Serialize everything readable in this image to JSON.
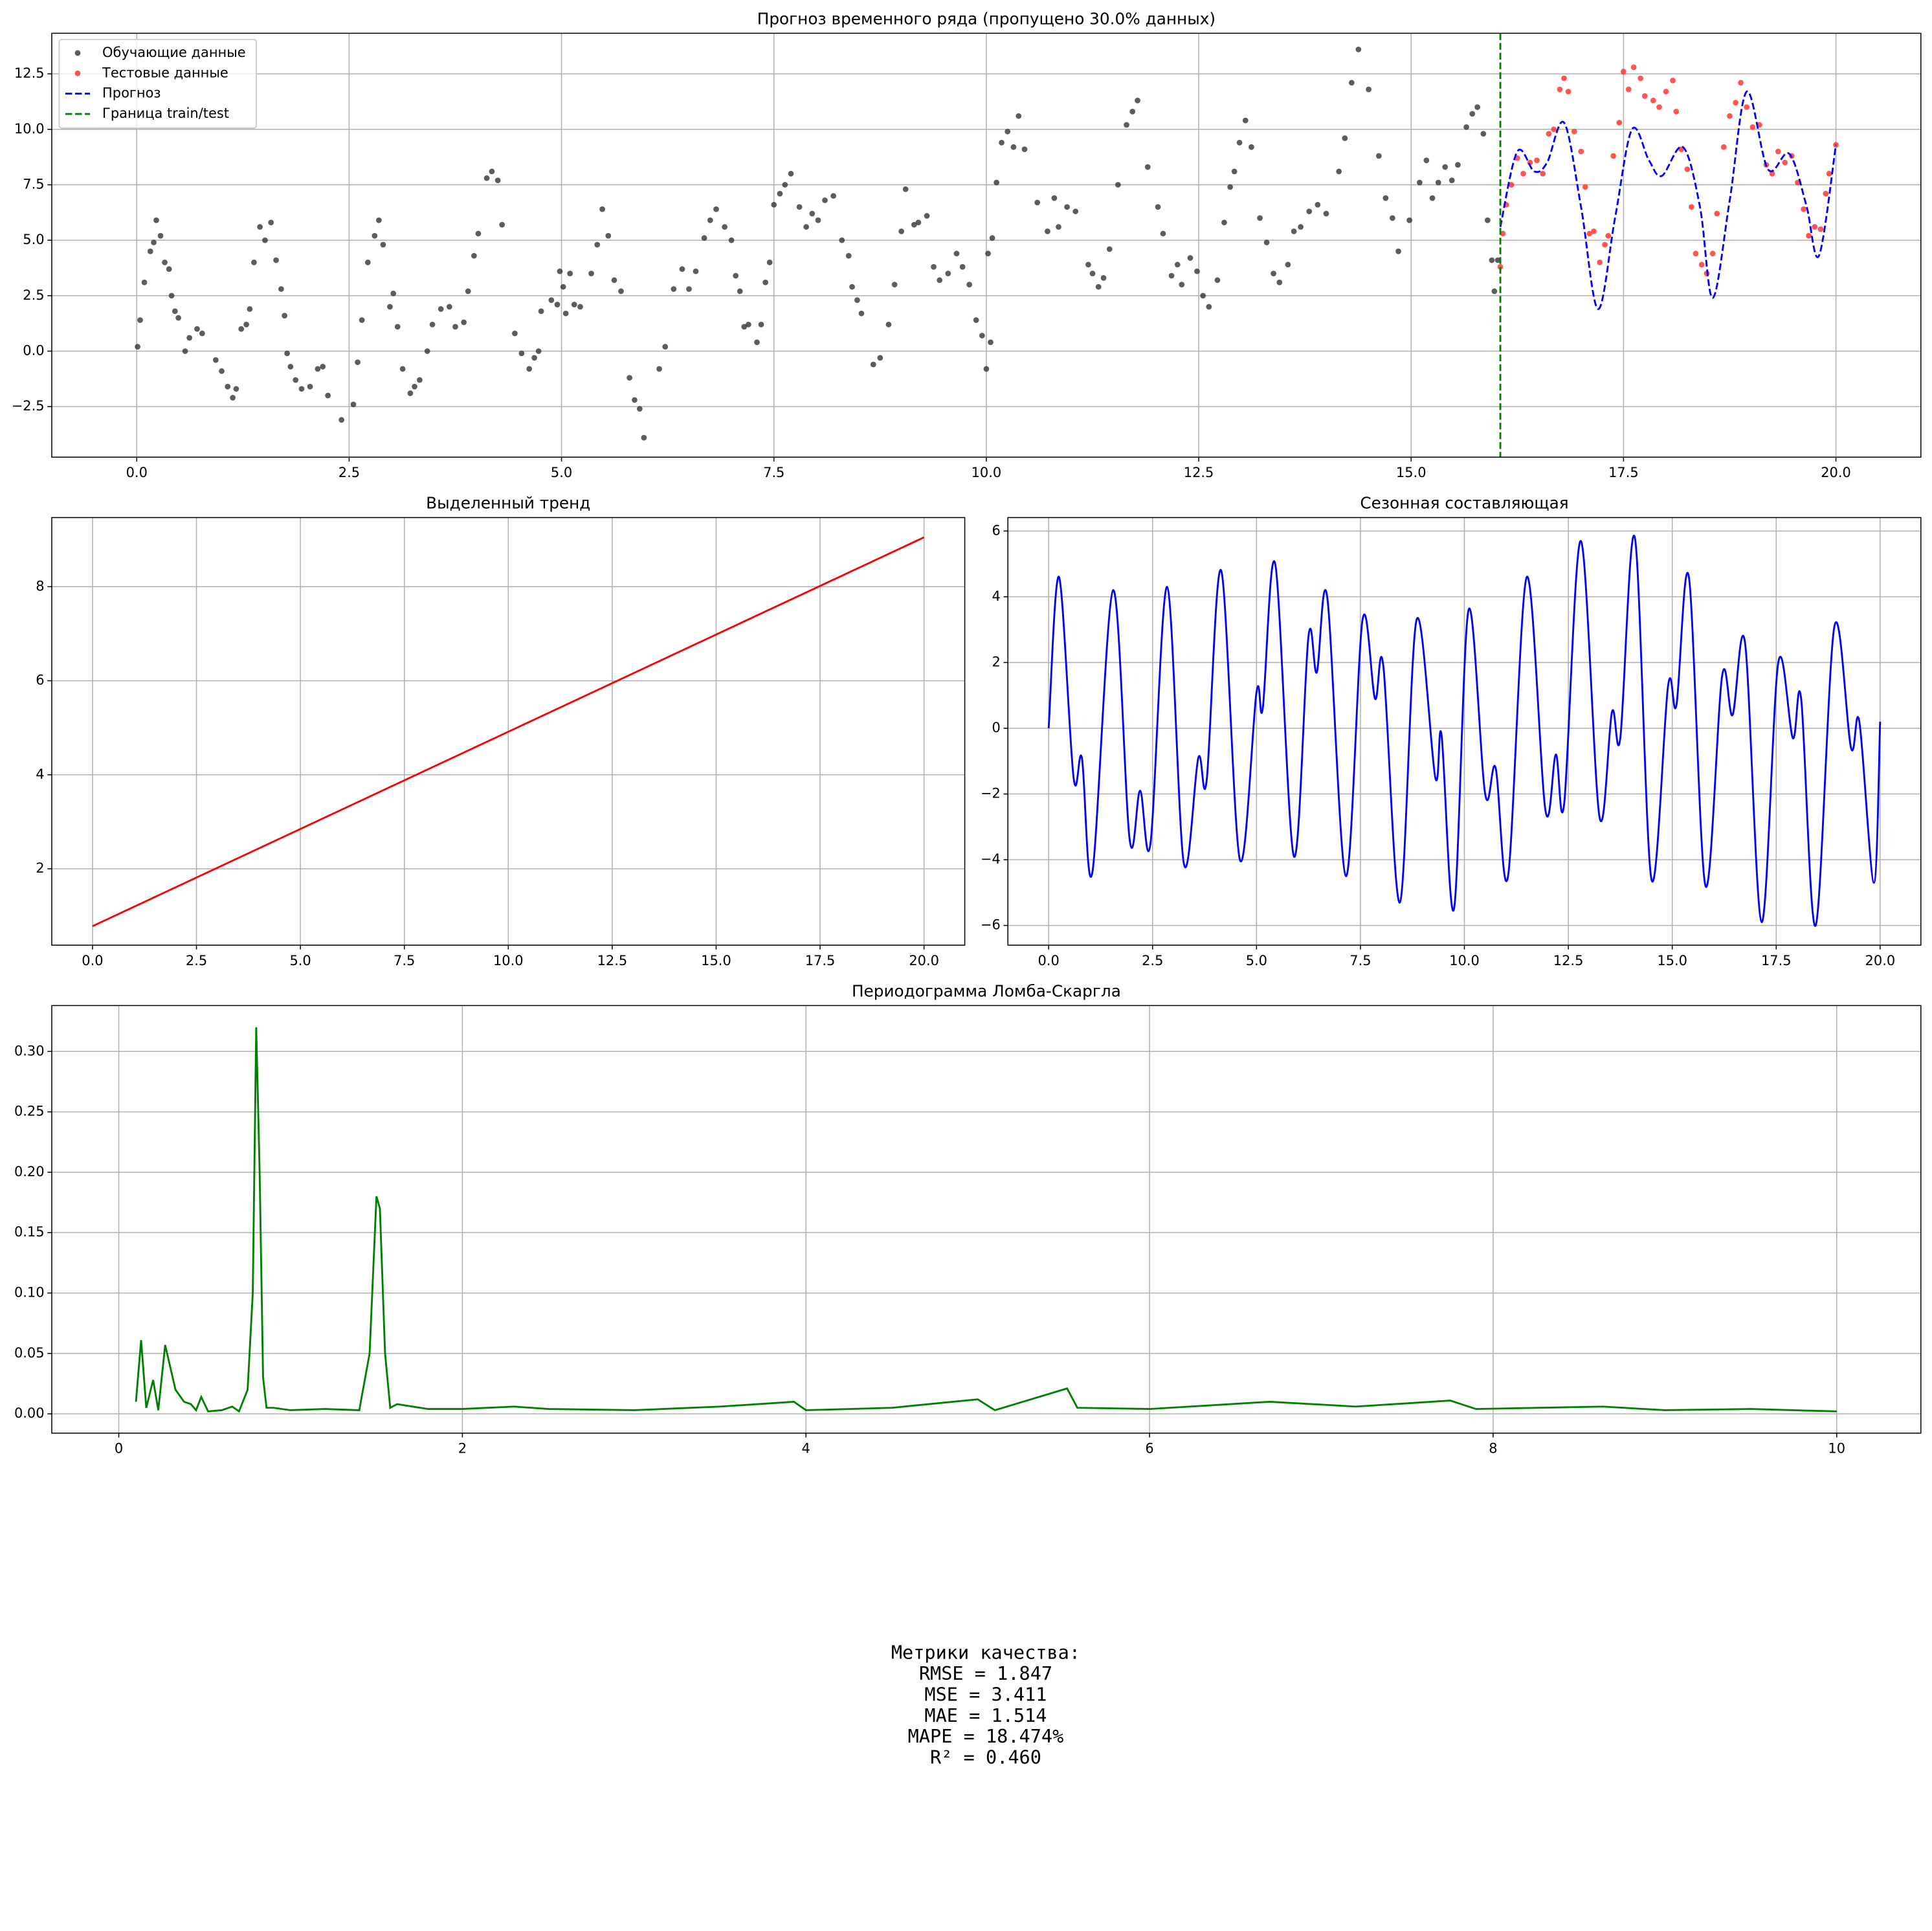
{
  "chart_data": [
    {
      "type": "scatter",
      "title": "Прогноз временного ряда (пропущено 30.0% данных)",
      "xlim": [
        -1,
        21
      ],
      "ylim": [
        -4.78,
        14.33
      ],
      "xticks": [
        {
          "value": 0,
          "label": "0.0"
        },
        2.5,
        {
          "value": 5,
          "label": "5.0"
        },
        7.5,
        {
          "value": 10,
          "label": "10.0"
        },
        12.5,
        {
          "value": 15,
          "label": "15.0"
        },
        17.5,
        {
          "value": 20,
          "label": "20.0"
        }
      ],
      "yticks": [
        {
          "value": -2.5,
          "label": "−2.5"
        },
        {
          "value": 0,
          "label": "0.0"
        },
        2.5,
        {
          "value": 5,
          "label": "5.0"
        },
        7.5,
        {
          "value": 10,
          "label": "10.0"
        },
        12.5
      ],
      "grid": true,
      "legend": "upper left",
      "series": [
        {
          "name": "Обучающие данные",
          "color": "#333333",
          "type": "scatter",
          "x": [
            0.01,
            0.04,
            0.09,
            0.16,
            0.2,
            0.23,
            0.28,
            0.33,
            0.38,
            0.41,
            0.45,
            0.49,
            0.57,
            0.62,
            0.71,
            0.77,
            0.93,
            1.0,
            1.07,
            1.13,
            1.17,
            1.23,
            1.29,
            1.33,
            1.38,
            1.45,
            1.51,
            1.58,
            1.64,
            1.7,
            1.74,
            1.77,
            1.81,
            1.87,
            1.94,
            2.04,
            2.13,
            2.19,
            2.25,
            2.41,
            2.55,
            2.6,
            2.65,
            2.72,
            2.8,
            2.85,
            2.9,
            2.98,
            3.02,
            3.07,
            3.13,
            3.22,
            3.27,
            3.33,
            3.42,
            3.48,
            3.58,
            3.68,
            3.75,
            3.85,
            3.9,
            3.97,
            4.02,
            4.12,
            4.18,
            4.25,
            4.3,
            4.45,
            4.53,
            4.62,
            4.68,
            4.73,
            4.76,
            4.88,
            4.95,
            4.98,
            5.02,
            5.05,
            5.1,
            5.15,
            5.22,
            5.35,
            5.42,
            5.48,
            5.55,
            5.62,
            5.7,
            5.8,
            5.86,
            5.92,
            5.97,
            6.15,
            6.22,
            6.32,
            6.42,
            6.5,
            6.58,
            6.68,
            6.75,
            6.82,
            6.92,
            7.0,
            7.05,
            7.1,
            7.15,
            7.2,
            7.3,
            7.35,
            7.4,
            7.45,
            7.5,
            7.57,
            7.63,
            7.7,
            7.8,
            7.88,
            7.95,
            8.02,
            8.1,
            8.2,
            8.3,
            8.38,
            8.42,
            8.48,
            8.53,
            8.67,
            8.75,
            8.85,
            8.92,
            9.0,
            9.05,
            9.15,
            9.2,
            9.3,
            9.38,
            9.45,
            9.55,
            9.65,
            9.72,
            9.8,
            9.88,
            9.95,
            10.0,
            10.05,
            10.02,
            10.07,
            10.12,
            10.18,
            10.25,
            10.32,
            10.38,
            10.45,
            10.6,
            10.72,
            10.8,
            10.85,
            10.95,
            11.05,
            11.2,
            11.25,
            11.32,
            11.38,
            11.45,
            11.55,
            11.65,
            11.72,
            11.78,
            11.9,
            12.02,
            12.08,
            12.18,
            12.25,
            12.3,
            12.4,
            12.48,
            12.55,
            12.62,
            12.72,
            12.8,
            12.87,
            12.92,
            12.98,
            13.05,
            13.12,
            13.22,
            13.3,
            13.38,
            13.45,
            13.55,
            13.62,
            13.7,
            13.8,
            13.9,
            14.0,
            14.15,
            14.22,
            14.3,
            14.38,
            14.5,
            14.62,
            14.7,
            14.78,
            14.85,
            14.98,
            15.1,
            15.18,
            15.25,
            15.32,
            15.4,
            15.48,
            15.55,
            15.65,
            15.72,
            15.78,
            15.85,
            15.9,
            15.95,
            15.98,
            16.02
          ],
          "values": [
            0.2,
            1.4,
            3.1,
            4.5,
            4.9,
            5.9,
            5.2,
            4.0,
            3.7,
            2.5,
            1.8,
            1.5,
            0.0,
            0.6,
            1.0,
            0.8,
            -0.4,
            -0.9,
            -1.6,
            -2.1,
            -1.7,
            1.0,
            1.2,
            1.9,
            4.0,
            5.6,
            5.0,
            5.8,
            4.1,
            2.8,
            1.6,
            -0.1,
            -0.7,
            -1.3,
            -1.7,
            -1.6,
            -0.8,
            -0.7,
            -2.0,
            -3.1,
            -2.4,
            -0.5,
            1.4,
            4.0,
            5.2,
            5.9,
            4.8,
            2.0,
            2.6,
            1.1,
            -0.8,
            -1.9,
            -1.6,
            -1.3,
            0.0,
            1.2,
            1.9,
            2.0,
            1.1,
            1.3,
            2.7,
            4.3,
            5.3,
            7.8,
            8.1,
            7.7,
            5.7,
            0.8,
            -0.1,
            -0.8,
            -0.3,
            0.0,
            1.8,
            2.3,
            2.1,
            3.6,
            2.9,
            1.7,
            3.5,
            2.1,
            2.0,
            3.5,
            4.8,
            6.4,
            5.2,
            3.2,
            2.7,
            -1.2,
            -2.2,
            -2.6,
            -3.9,
            -0.8,
            0.2,
            2.8,
            3.7,
            2.8,
            3.6,
            5.1,
            5.9,
            6.4,
            5.6,
            5.0,
            3.4,
            2.7,
            1.1,
            1.2,
            0.4,
            1.2,
            3.1,
            4.0,
            6.6,
            7.1,
            7.5,
            8.0,
            6.5,
            5.6,
            6.2,
            5.9,
            6.8,
            7.0,
            5.0,
            4.3,
            2.9,
            2.3,
            1.7,
            -0.6,
            -0.3,
            1.2,
            3.0,
            5.4,
            7.3,
            5.7,
            5.8,
            6.1,
            3.8,
            3.2,
            3.5,
            4.4,
            3.8,
            3.0,
            1.4,
            0.7,
            -0.8,
            0.4,
            4.4,
            5.1,
            7.6,
            9.4,
            9.9,
            9.2,
            10.6,
            9.1,
            6.7,
            5.4,
            6.9,
            5.6,
            6.5,
            6.3,
            3.9,
            3.5,
            2.9,
            3.3,
            4.6,
            7.5,
            10.2,
            10.8,
            11.3,
            8.3,
            6.5,
            5.3,
            3.4,
            3.9,
            3.0,
            4.2,
            3.6,
            2.5,
            2.0,
            3.2,
            5.8,
            7.4,
            8.1,
            9.4,
            10.4,
            9.2,
            6.0,
            4.9,
            3.5,
            3.1,
            3.9,
            5.4,
            5.6,
            6.3,
            6.6,
            6.2,
            8.1,
            9.6,
            12.1,
            13.6,
            11.8,
            8.8,
            6.9,
            6.0,
            4.5,
            5.9,
            7.6,
            8.6,
            6.9,
            7.6,
            8.3,
            7.7,
            8.4,
            10.1,
            10.7,
            11.0,
            9.8,
            5.9,
            4.1,
            2.7,
            4.1
          ]
        },
        {
          "name": "Тестовые данные",
          "color": "#ff2a2a",
          "type": "scatter",
          "x": [
            16.05,
            16.08,
            16.12,
            16.18,
            16.25,
            16.32,
            16.4,
            16.48,
            16.55,
            16.62,
            16.68,
            16.75,
            16.8,
            16.85,
            16.92,
            17.0,
            17.05,
            17.1,
            17.15,
            17.22,
            17.28,
            17.32,
            17.38,
            17.45,
            17.5,
            17.56,
            17.62,
            17.7,
            17.75,
            17.85,
            17.92,
            18.0,
            18.08,
            18.12,
            18.18,
            18.25,
            18.3,
            18.35,
            18.42,
            18.48,
            18.55,
            18.6,
            18.68,
            18.75,
            18.82,
            18.88,
            18.95,
            19.02,
            19.1,
            19.18,
            19.25,
            19.32,
            19.4,
            19.48,
            19.55,
            19.62,
            19.68,
            19.75,
            19.82,
            19.88,
            19.92,
            20.0
          ],
          "values": [
            3.8,
            5.3,
            6.6,
            7.5,
            8.7,
            8.0,
            8.5,
            8.6,
            8.0,
            9.8,
            10.0,
            11.8,
            12.3,
            11.7,
            9.9,
            9.0,
            7.4,
            5.3,
            5.4,
            4.0,
            4.8,
            5.2,
            8.8,
            10.3,
            12.6,
            11.8,
            12.8,
            12.3,
            11.5,
            11.3,
            11.0,
            11.7,
            12.2,
            10.8,
            9.1,
            8.2,
            6.5,
            4.4,
            3.9,
            3.5,
            4.4,
            6.2,
            9.2,
            10.6,
            11.2,
            12.1,
            11.0,
            10.1,
            10.2,
            8.4,
            8.0,
            9.0,
            8.5,
            8.8,
            7.6,
            6.4,
            5.2,
            5.6,
            5.5,
            7.1,
            8.0,
            9.3
          ]
        },
        {
          "name": "Прогноз",
          "color": "#0000ff",
          "type": "line",
          "linestyle": "dashed",
          "smooth": true,
          "x": [
            16.05,
            16.25,
            16.45,
            16.6,
            16.8,
            17.0,
            17.2,
            17.4,
            17.6,
            17.8,
            17.95,
            18.2,
            18.4,
            18.55,
            18.75,
            18.95,
            19.2,
            19.45,
            19.65,
            19.8,
            20
          ],
          "values": [
            5.6,
            9.0,
            8.1,
            8.5,
            10.3,
            6.5,
            1.9,
            6.0,
            10.0,
            8.6,
            7.9,
            9.2,
            6.5,
            2.4,
            6.8,
            11.7,
            8.2,
            8.9,
            6.6,
            4.3,
            9.3
          ]
        },
        {
          "name": "Граница train/test",
          "color": "#008000",
          "type": "vline",
          "linestyle": "dashed",
          "x": 16.05
        }
      ]
    },
    {
      "type": "line",
      "title": "Выделенный тренд",
      "xlim": [
        -0.98,
        20.98
      ],
      "ylim": [
        0.376,
        9.47
      ],
      "xticks": [
        {
          "value": 0,
          "label": "0.0"
        },
        2.5,
        {
          "value": 5,
          "label": "5.0"
        },
        7.5,
        {
          "value": 10,
          "label": "10.0"
        },
        12.5,
        {
          "value": 15,
          "label": "15.0"
        },
        17.5,
        {
          "value": 20,
          "label": "20.0"
        }
      ],
      "yticks": [
        2,
        4,
        6,
        8
      ],
      "grid": true,
      "x": [
        0,
        20
      ],
      "series": [
        {
          "color": "#ff0000",
          "values": [
            0.78,
            9.05
          ]
        }
      ]
    },
    {
      "type": "line",
      "title": "Сезонная составляющая",
      "xlim": [
        -0.98,
        20.98
      ],
      "ylim": [
        -6.6,
        6.41
      ],
      "xticks": [
        {
          "value": 0,
          "label": "0.0"
        },
        2.5,
        {
          "value": 5,
          "label": "5.0"
        },
        7.5,
        {
          "value": 10,
          "label": "10.0"
        },
        12.5,
        {
          "value": 15,
          "label": "15.0"
        },
        17.5,
        {
          "value": 20,
          "label": "20.0"
        }
      ],
      "yticks": [
        {
          "value": -6,
          "label": "−6"
        },
        {
          "value": -4,
          "label": "−4"
        },
        {
          "value": -2,
          "label": "−2"
        },
        0,
        2,
        4,
        6
      ],
      "grid": true,
      "x": [
        0,
        0.25,
        0.6,
        0.8,
        1.05,
        1.55,
        1.95,
        2.2,
        2.45,
        2.85,
        3.25,
        3.6,
        3.8,
        4.15,
        4.6,
        5.0,
        5.15,
        5.45,
        5.9,
        6.25,
        6.45,
        6.7,
        7.15,
        7.55,
        7.85,
        8.05,
        8.45,
        8.85,
        9.3,
        9.45,
        9.75,
        10.1,
        10.5,
        10.75,
        11.05,
        11.5,
        11.95,
        12.2,
        12.4,
        12.8,
        13.25,
        13.55,
        13.75,
        14.1,
        14.5,
        14.9,
        15.1,
        15.4,
        15.8,
        16.2,
        16.45,
        16.75,
        17.15,
        17.55,
        17.9,
        18.1,
        18.45,
        18.9,
        19.3,
        19.5,
        19.85,
        20
      ],
      "series": [
        {
          "color": "#0000ff",
          "smooth": true,
          "values": [
            0,
            4.6,
            -1.5,
            -0.9,
            -4.4,
            4.2,
            -3.4,
            -1.9,
            -3.5,
            4.3,
            -4.1,
            -0.9,
            -1.6,
            4.8,
            -4.0,
            1.1,
            0.6,
            5.0,
            -3.9,
            2.8,
            1.7,
            4.0,
            -4.5,
            3.3,
            0.9,
            1.9,
            -5.3,
            3.3,
            -1.5,
            -0.2,
            -5.5,
            3.6,
            -2.0,
            -1.2,
            -4.5,
            4.6,
            -2.5,
            -0.8,
            -2.3,
            5.7,
            -2.7,
            0.5,
            -0.3,
            5.8,
            -4.6,
            1.3,
            0.7,
            4.6,
            -4.8,
            1.6,
            0.4,
            2.6,
            -5.9,
            2.0,
            -0.3,
            0.9,
            -6.0,
            3.1,
            -0.6,
            0.2,
            -4.7,
            0.2
          ]
        }
      ]
    },
    {
      "type": "line",
      "title": "Периодограмма Ломба-Скаргла",
      "xlim": [
        -0.39,
        10.49
      ],
      "ylim": [
        -0.016,
        0.338
      ],
      "xticks": [
        0,
        2,
        4,
        6,
        8,
        10
      ],
      "yticks": [
        {
          "value": 0,
          "label": "0.00"
        },
        0.05,
        {
          "value": 0.1,
          "label": "0.10"
        },
        0.15,
        {
          "value": 0.2,
          "label": "0.20"
        },
        0.25,
        {
          "value": 0.3,
          "label": "0.30"
        }
      ],
      "grid": true,
      "x": [
        0.1,
        0.13,
        0.16,
        0.2,
        0.23,
        0.27,
        0.33,
        0.38,
        0.42,
        0.45,
        0.48,
        0.52,
        0.6,
        0.66,
        0.7,
        0.75,
        0.78,
        0.8,
        0.82,
        0.84,
        0.86,
        0.9,
        1.0,
        1.2,
        1.4,
        1.46,
        1.5,
        1.52,
        1.55,
        1.58,
        1.62,
        1.8,
        2.0,
        2.3,
        2.5,
        3.0,
        3.5,
        3.93,
        4.0,
        4.5,
        5.0,
        5.1,
        5.52,
        5.58,
        6.0,
        6.7,
        7.2,
        7.75,
        7.9,
        8.64,
        9.0,
        9.5,
        10
      ],
      "series": [
        {
          "color": "#008000",
          "values": [
            0.01,
            0.061,
            0.005,
            0.028,
            0.003,
            0.057,
            0.02,
            0.01,
            0.008,
            0.003,
            0.014,
            0.002,
            0.003,
            0.006,
            0.002,
            0.02,
            0.1,
            0.32,
            0.2,
            0.03,
            0.005,
            0.005,
            0.003,
            0.004,
            0.003,
            0.05,
            0.18,
            0.17,
            0.05,
            0.005,
            0.008,
            0.004,
            0.004,
            0.006,
            0.004,
            0.003,
            0.006,
            0.01,
            0.003,
            0.005,
            0.012,
            0.003,
            0.021,
            0.005,
            0.004,
            0.01,
            0.006,
            0.011,
            0.004,
            0.006,
            0.003,
            0.004,
            0.002
          ]
        }
      ]
    }
  ],
  "metrics": {
    "title": "Метрики качества:",
    "lines": [
      "RMSE = 1.847",
      "MSE = 3.411",
      "MAE = 1.514",
      "MAPE = 18.474%",
      "R² = 0.460"
    ]
  }
}
